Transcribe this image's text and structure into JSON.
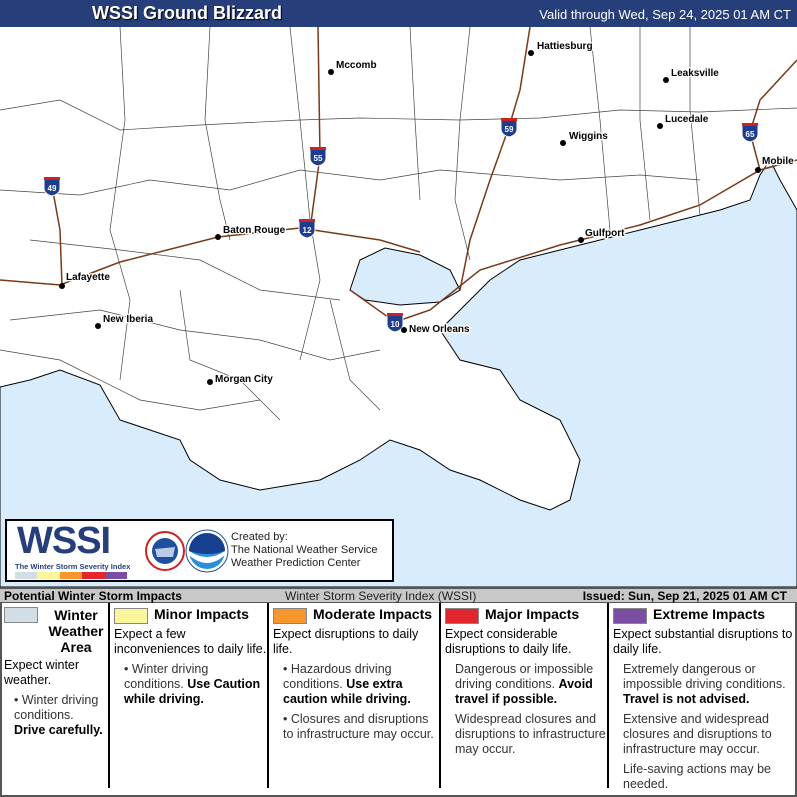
{
  "header": {
    "title": "WSSI Ground Blizzard",
    "valid": "Valid through Wed, Sep 24, 2025 01 AM CT"
  },
  "colors": {
    "header": "#263f7a",
    "water": "#d9ecfb",
    "interstate": "#7a3a1a",
    "winter": "#d3dde6",
    "minor": "#fbf59b",
    "moderate": "#f7962d",
    "major": "#e3262d",
    "extreme": "#7a4ea3"
  },
  "map": {
    "cities": [
      {
        "name": "Hattiesburg"
      },
      {
        "name": "Mccomb"
      },
      {
        "name": "Leaksville"
      },
      {
        "name": "Wiggins"
      },
      {
        "name": "Lucedale"
      },
      {
        "name": "Mobile"
      },
      {
        "name": "Baton Rouge"
      },
      {
        "name": "Gulfport"
      },
      {
        "name": "Lafayette"
      },
      {
        "name": "New Iberia"
      },
      {
        "name": "New Orleans"
      },
      {
        "name": "Morgan City"
      }
    ],
    "interstates": [
      "49",
      "55",
      "12",
      "59",
      "65",
      "10"
    ]
  },
  "logo": {
    "wssi": "WSSI",
    "subtitle": "The Winter Storm Severity Index",
    "credit_1": "Created by:",
    "credit_2": "The National Weather Service",
    "credit_3": "Weather Prediction Center"
  },
  "legend": {
    "heading": "Potential Winter Storm Impacts",
    "index": "Winter Storm Severity Index (WSSI)",
    "issued": "Issued: Sun, Sep 21, 2025 01 AM CT",
    "categories": [
      {
        "title": "Winter Weather Area",
        "lead": "Expect winter weather.",
        "b1": "Winter driving conditions.",
        "b1b": "Drive carefully."
      },
      {
        "title": "Minor Impacts",
        "lead": "Expect a few inconveniences to daily life.",
        "b1": "Winter driving conditions.",
        "b1b": "Use Caution while driving."
      },
      {
        "title": "Moderate Impacts",
        "lead": "Expect disruptions to daily life.",
        "b1": "Hazardous driving conditions.",
        "b1b": "Use extra caution while driving.",
        "b2": "Closures and disruptions to infrastructure may occur."
      },
      {
        "title": "Major Impacts",
        "lead": "Expect considerable disruptions to daily life.",
        "b1": "Dangerous or impossible driving conditions.",
        "b1b": "Avoid travel if possible.",
        "b2": "Widespread closures and disruptions to infrastructure may occur."
      },
      {
        "title": "Extreme Impacts",
        "lead": "Expect substantial disruptions to daily life.",
        "b1": "Extremely dangerous or impossible driving conditions.",
        "b1b": "Travel is not advised.",
        "b2": "Extensive and widespread closures and disruptions to infrastructure may occur.",
        "b3": "Life-saving actions may be needed."
      }
    ]
  }
}
